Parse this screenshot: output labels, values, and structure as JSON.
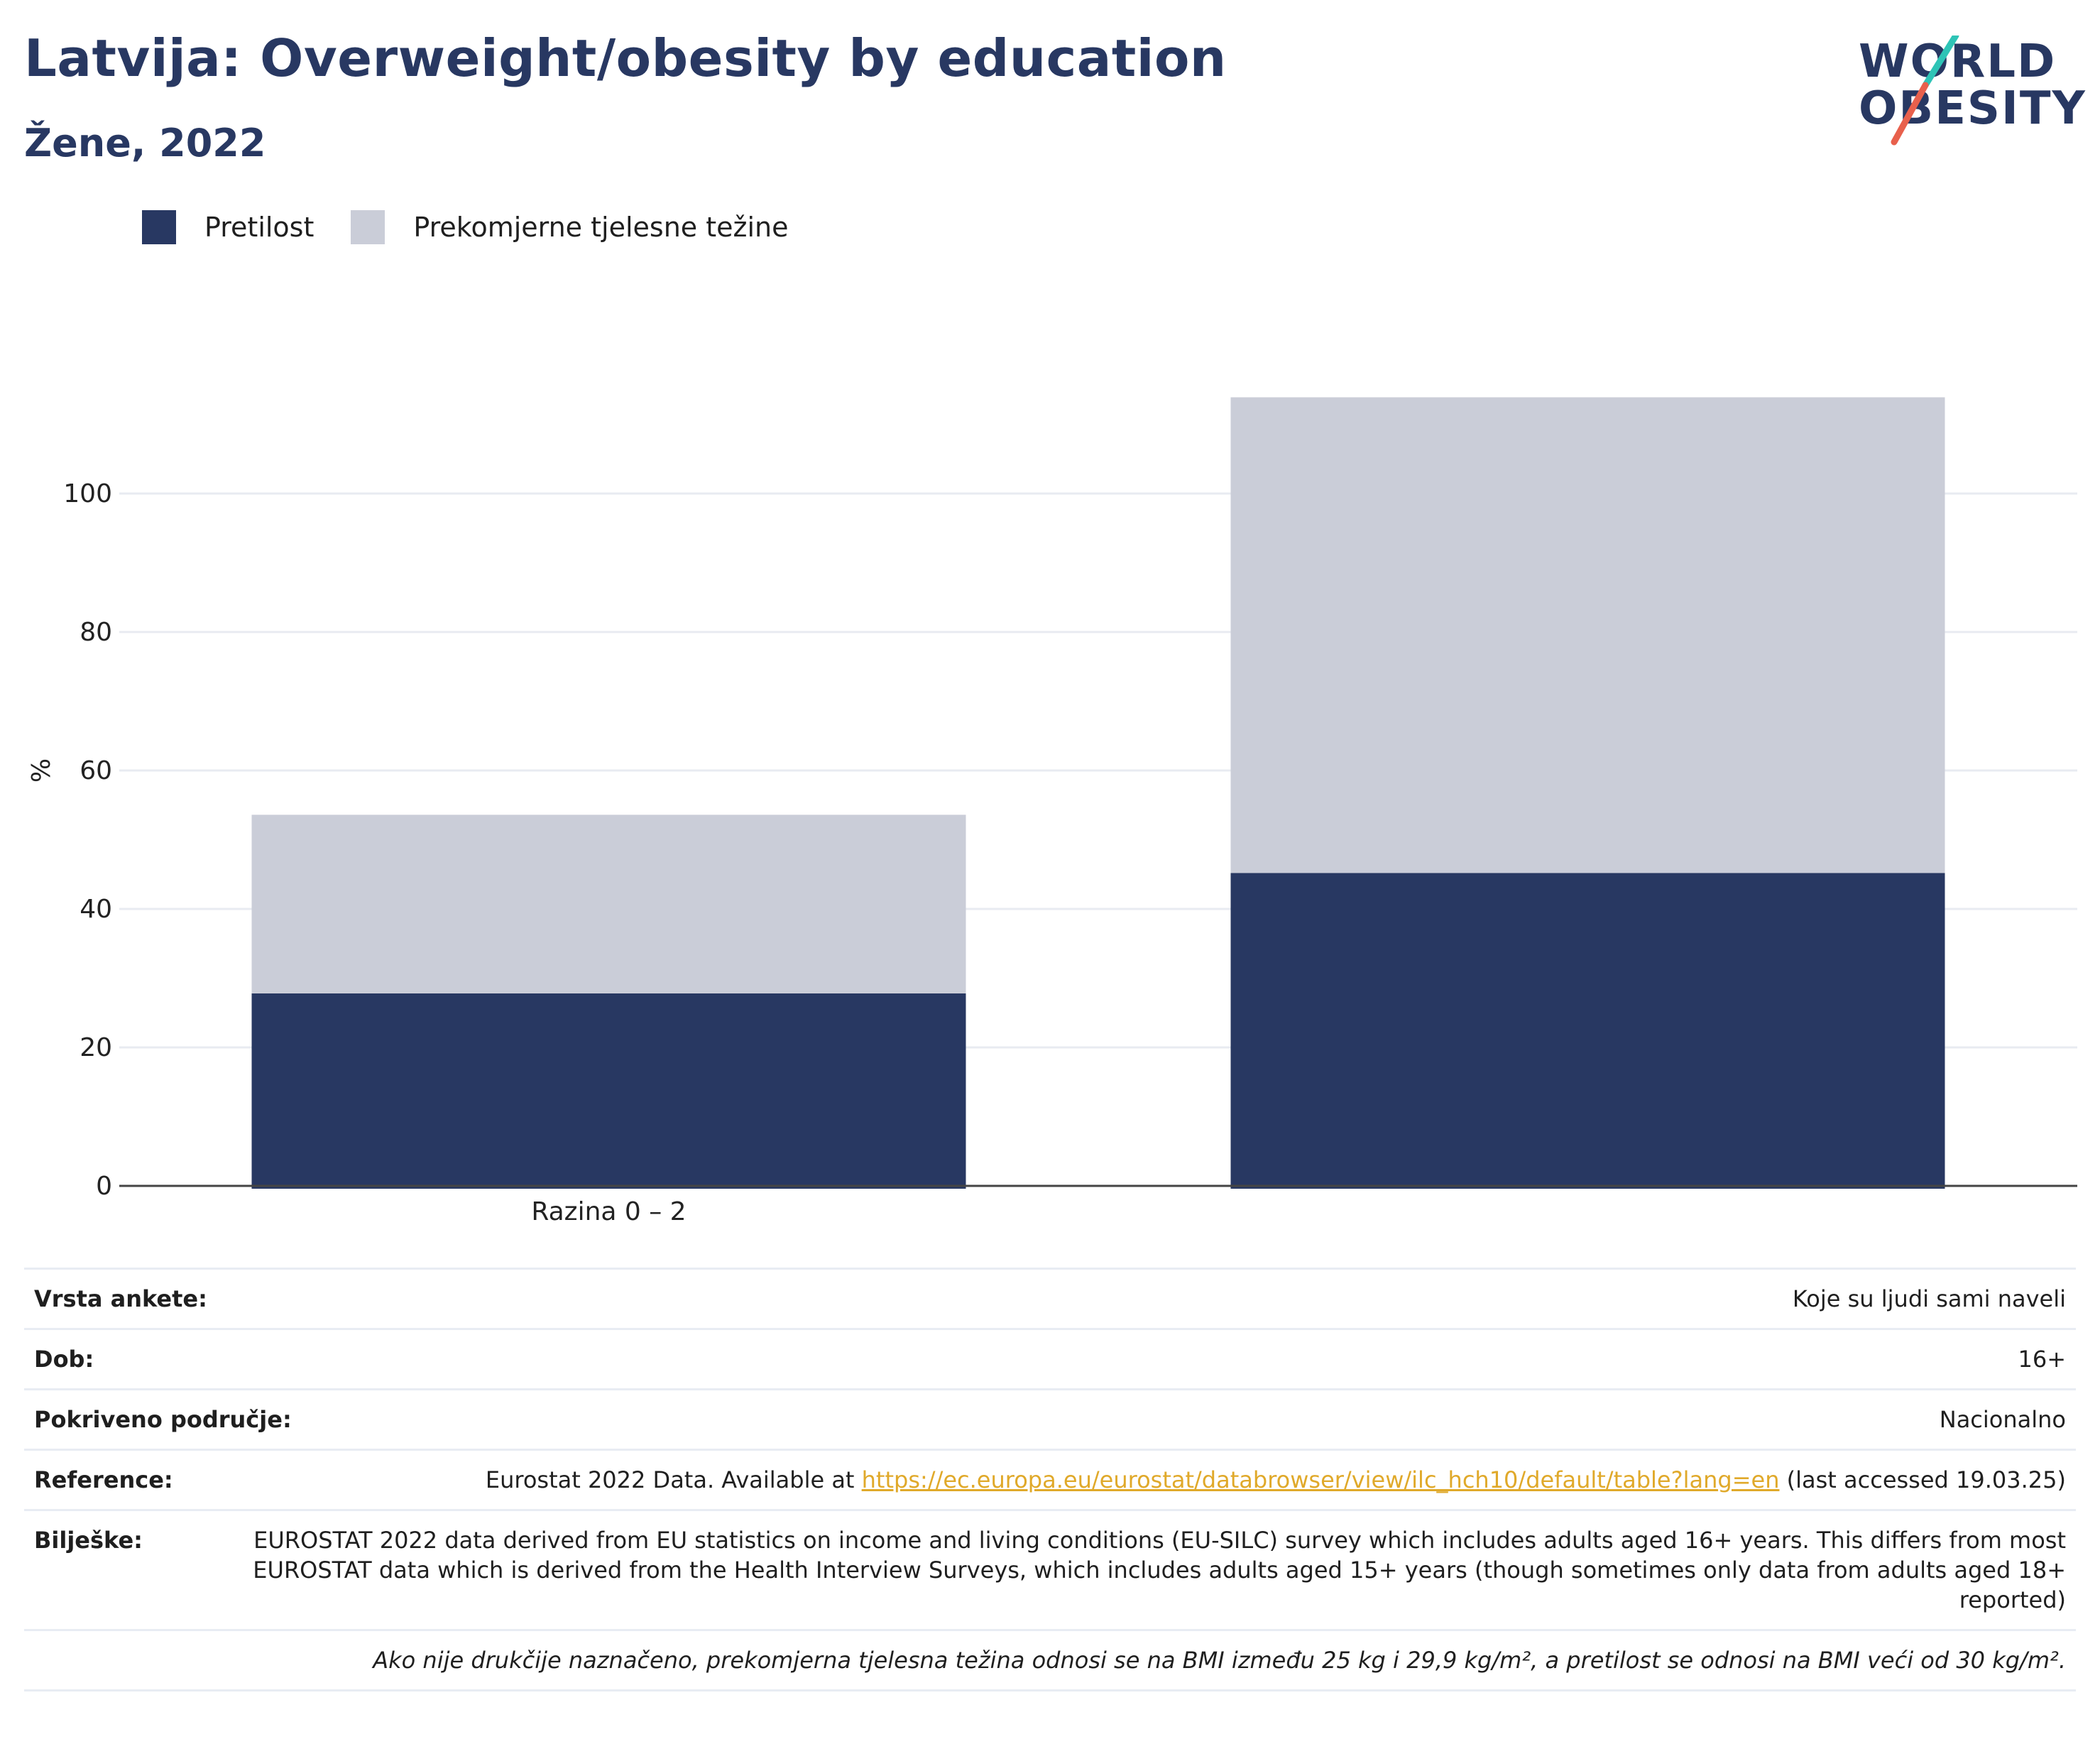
{
  "title": "Latvija: Overweight/obesity by education",
  "subtitle": "Žene, 2022",
  "logo": {
    "line1": "WORLD",
    "line2": "OBESITY"
  },
  "colors": {
    "obesity": "#283862",
    "overweight": "#cacdd8",
    "accent_teal": "#2ec4b6",
    "accent_red": "#e8604c",
    "link": "#e0a92a"
  },
  "legend": [
    {
      "label": "Pretilost",
      "color": "#283862"
    },
    {
      "label": "Prekomjerne tjelesne težine",
      "color": "#cacdd8"
    }
  ],
  "chart_data": {
    "type": "bar",
    "stacked": true,
    "categories": [
      "Razina 0 – 2",
      ""
    ],
    "series": [
      {
        "name": "Pretilost",
        "values": [
          27.8,
          45.2
        ]
      },
      {
        "name": "Prekomjerne tjelesne težine",
        "values": [
          25.8,
          68.7
        ]
      }
    ],
    "ylabel": "%",
    "yticks": [
      0,
      20,
      40,
      60,
      80,
      100
    ],
    "ylim": [
      0,
      118
    ],
    "grid": true
  },
  "meta": [
    {
      "key": "Vrsta ankete:",
      "value": "Koje su ljudi sami naveli"
    },
    {
      "key": "Dob:",
      "value": "16+"
    },
    {
      "key": "Pokriveno područje:",
      "value": "Nacionalno"
    },
    {
      "key": "Reference:",
      "value_pre": "Eurostat 2022 Data. Available at ",
      "link": "https://ec.europa.eu/eurostat/databrowser/view/ilc_hch10/default/table?lang=en",
      "value_post": " (last accessed 19.03.25)"
    },
    {
      "key": "Bilješke:",
      "value": "EUROSTAT 2022 data derived from EU statistics on income and living conditions (EU-SILC) survey which includes adults aged 16+ years. This differs from most EUROSTAT data which is derived from the Health Interview Surveys, which includes adults aged 15+ years (though sometimes only data from adults aged 18+ reported)"
    }
  ],
  "footnote": "Ako nije drukčije naznačeno, prekomjerna tjelesna težina odnosi se na BMI između 25 kg i 29,9 kg/m², a pretilost se odnosi na BMI veći od 30 kg/m²."
}
